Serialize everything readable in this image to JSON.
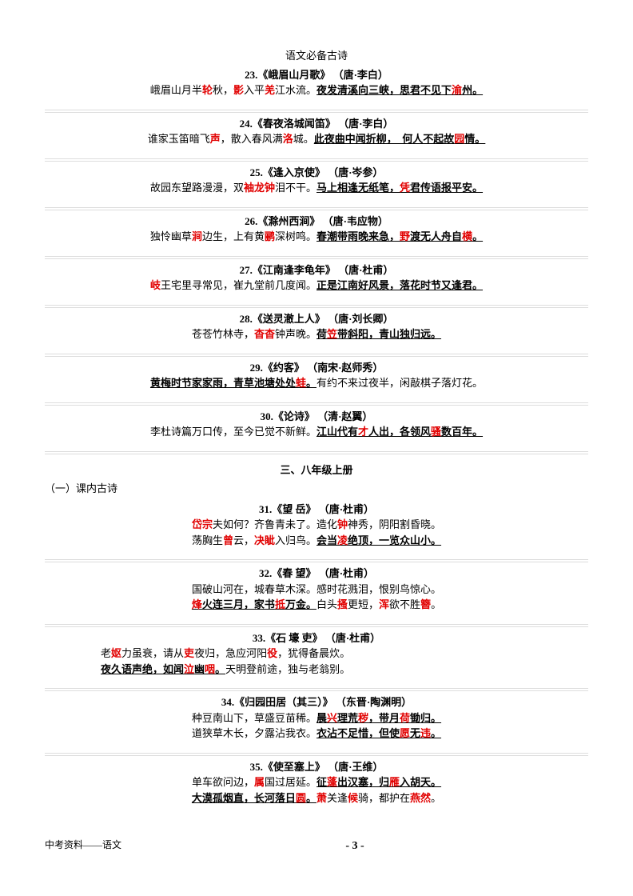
{
  "header": "语文必备古诗",
  "poems": {
    "p23": {
      "title": "23.《峨眉山月歌》 （唐·李白）"
    },
    "p24": {
      "title": "24.《春夜洛城闻笛》 （唐·李白）"
    },
    "p25": {
      "title": "25.《逢入京使》 （唐·岑参）"
    },
    "p26": {
      "title": "26.《滁州西涧》 （唐·韦应物）"
    },
    "p27": {
      "title": "27.《江南逢李龟年》 （唐·杜甫）"
    },
    "p28": {
      "title": "28.《送灵澈上人》 （唐·刘长卿）"
    },
    "p29": {
      "title": "29.《约客》 （南宋·赵师秀）"
    },
    "p30": {
      "title": "30.《论诗》 （清·赵翼）"
    },
    "p31": {
      "title": "31.《望 岳》 （唐·杜甫）"
    },
    "p32": {
      "title": "32.《春 望》 （唐·杜甫）"
    },
    "p33": {
      "title": "33.《石 壕 吏》 （唐·杜甫）"
    },
    "p34": {
      "title": "34.《归园田居（其三）》 （东晋·陶渊明）"
    },
    "p35": {
      "title": "35.《使至塞上》 （唐·王维）"
    }
  },
  "section3": "三、八年级上册",
  "subSection": "（一）课内古诗",
  "footer_left": "中考资料——语文",
  "footer_center": "- 3 -"
}
